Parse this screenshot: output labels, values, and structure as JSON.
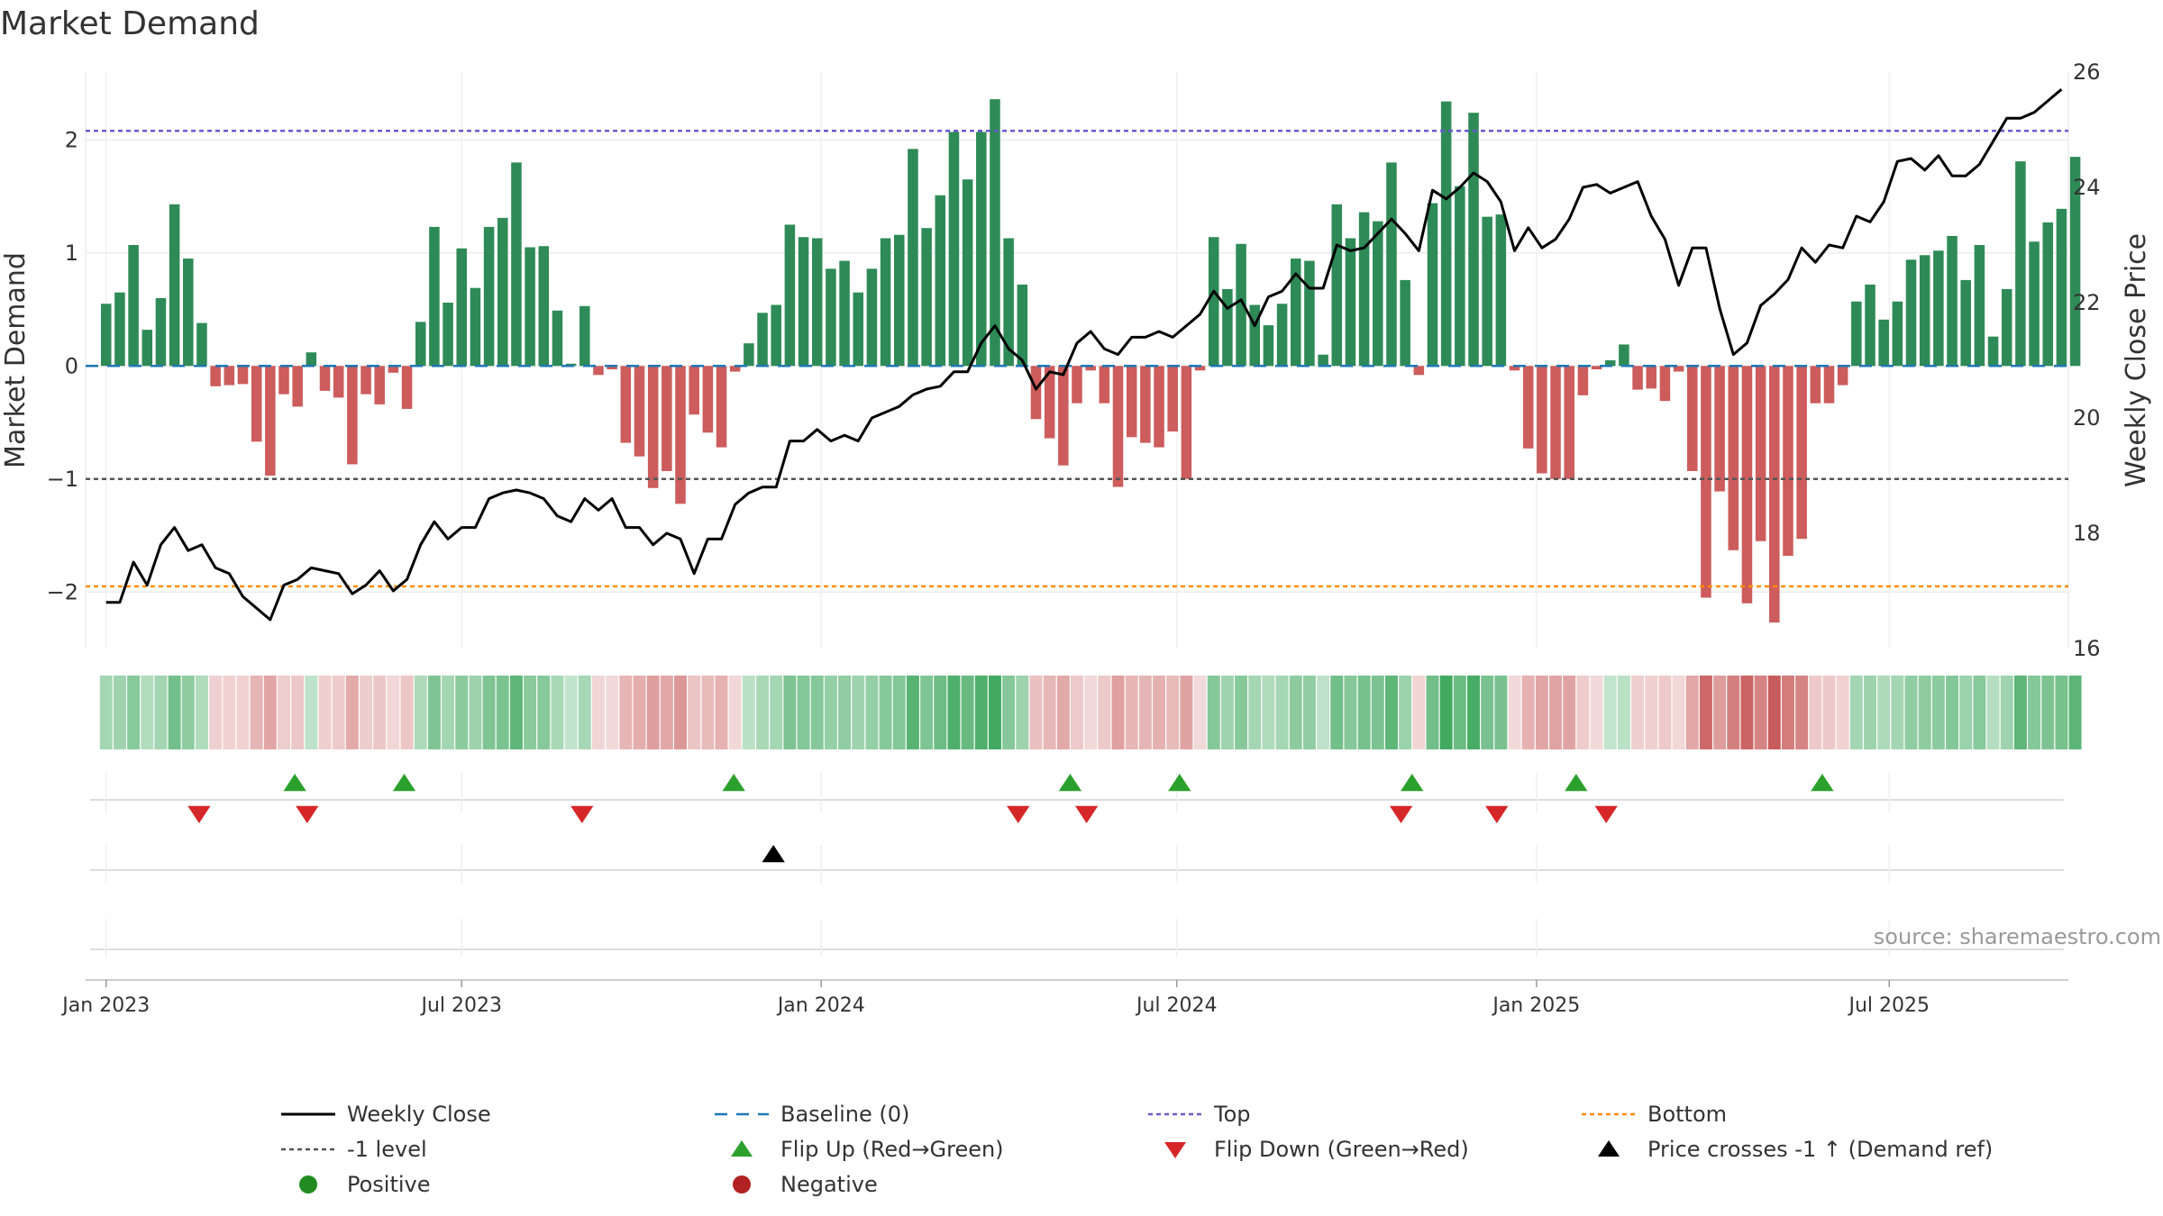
{
  "chart_data": {
    "type": "bar",
    "title": "Market Demand",
    "ylabel_left": "Market Demand",
    "ylabel_right": "Weekly Close Price",
    "ylim_left": [
      -2.5,
      2.6
    ],
    "ylim_right": [
      16,
      26
    ],
    "yticks_left": [
      {
        "value": 2,
        "label": "2"
      },
      {
        "value": 1,
        "label": "1"
      },
      {
        "value": 0,
        "label": "0"
      },
      {
        "value": -1,
        "label": "−1"
      },
      {
        "value": -2,
        "label": "−2"
      }
    ],
    "yticks_right": [
      {
        "value": 26,
        "label": "26"
      },
      {
        "value": 24,
        "label": "24"
      },
      {
        "value": 22,
        "label": "22"
      },
      {
        "value": 20,
        "label": "20"
      },
      {
        "value": 18,
        "label": "18"
      },
      {
        "value": 16,
        "label": "16"
      }
    ],
    "x_range_weeks": [
      -1.5,
      143.5
    ],
    "x_ticks": [
      {
        "week": 0,
        "label": "Jan 2023"
      },
      {
        "week": 26,
        "label": "Jul 2023"
      },
      {
        "week": 52.3,
        "label": "Jan 2024"
      },
      {
        "week": 78.3,
        "label": "Jul 2024"
      },
      {
        "week": 104.6,
        "label": "Jan 2025"
      },
      {
        "week": 130.4,
        "label": "Jul 2025"
      }
    ],
    "reference_lines": {
      "top": 2.08,
      "minus_one_level": -1.0,
      "bottom": -1.95,
      "baseline": 0
    },
    "colors": {
      "positive_bar": "#2e8b57",
      "negative_bar": "#cd5c5c",
      "price_line": "#000000",
      "baseline": "#1f77b4",
      "top": "#6a5acd",
      "minus_one": "#555555",
      "bottom": "#ff8c00",
      "flip_up": "#2ca02c",
      "flip_down": "#d62728",
      "cross": "#000000",
      "positive_dot": "#228b22",
      "negative_dot": "#b22222"
    },
    "demand": [
      0.55,
      0.65,
      1.07,
      0.32,
      0.6,
      1.43,
      0.95,
      0.38,
      -0.18,
      -0.17,
      -0.16,
      -0.67,
      -0.97,
      -0.25,
      -0.36,
      0.12,
      -0.22,
      -0.28,
      -0.87,
      -0.25,
      -0.34,
      -0.06,
      -0.38,
      0.39,
      1.23,
      0.56,
      1.04,
      0.69,
      1.23,
      1.31,
      1.8,
      1.05,
      1.06,
      0.49,
      0.02,
      0.53,
      -0.08,
      -0.03,
      -0.68,
      -0.8,
      -1.08,
      -0.93,
      -1.22,
      -0.43,
      -0.59,
      -0.72,
      -0.05,
      0.2,
      0.47,
      0.54,
      1.25,
      1.14,
      1.13,
      0.86,
      0.93,
      0.65,
      0.86,
      1.13,
      1.16,
      1.92,
      1.22,
      1.51,
      2.07,
      1.65,
      2.07,
      2.36,
      1.13,
      0.72,
      -0.47,
      -0.64,
      -0.88,
      -0.33,
      -0.04,
      -0.33,
      -1.07,
      -0.63,
      -0.68,
      -0.72,
      -0.58,
      -1.0,
      -0.04,
      1.14,
      0.68,
      1.08,
      0.54,
      0.36,
      0.55,
      0.95,
      0.93,
      0.1,
      1.43,
      1.13,
      1.36,
      1.28,
      1.8,
      0.76,
      -0.08,
      1.44,
      2.34,
      1.59,
      2.24,
      1.32,
      1.34,
      -0.04,
      -0.73,
      -0.95,
      -1.0,
      -1.0,
      -0.26,
      -0.03,
      0.05,
      0.19,
      -0.21,
      -0.2,
      -0.31,
      -0.05,
      -0.93,
      -2.05,
      -1.11,
      -1.63,
      -2.1,
      -1.55,
      -2.27,
      -1.68,
      -1.53,
      -0.33,
      -0.33,
      -0.17,
      0.57,
      0.72,
      0.41,
      0.57,
      0.94,
      0.98,
      1.02,
      1.15,
      0.76,
      1.07,
      0.26,
      0.68,
      1.81,
      1.1,
      1.27,
      1.39,
      1.85
    ],
    "price": [
      16.8,
      16.8,
      17.5,
      17.1,
      17.8,
      18.1,
      17.7,
      17.8,
      17.4,
      17.3,
      16.9,
      16.7,
      16.5,
      17.1,
      17.2,
      17.4,
      17.35,
      17.3,
      16.95,
      17.1,
      17.35,
      17.0,
      17.2,
      17.8,
      18.2,
      17.9,
      18.1,
      18.1,
      18.6,
      18.7,
      18.75,
      18.7,
      18.6,
      18.3,
      18.2,
      18.6,
      18.4,
      18.6,
      18.1,
      18.1,
      17.8,
      18.0,
      17.9,
      17.3,
      17.9,
      17.9,
      18.5,
      18.7,
      18.8,
      18.8,
      19.6,
      19.6,
      19.8,
      19.6,
      19.7,
      19.6,
      20.0,
      20.1,
      20.2,
      20.4,
      20.5,
      20.55,
      20.8,
      20.8,
      21.3,
      21.6,
      21.2,
      21.0,
      20.5,
      20.8,
      20.75,
      21.3,
      21.5,
      21.2,
      21.1,
      21.4,
      21.4,
      21.5,
      21.4,
      21.6,
      21.8,
      22.2,
      21.9,
      22.05,
      21.6,
      22.1,
      22.2,
      22.5,
      22.25,
      22.25,
      23.0,
      22.9,
      22.95,
      23.2,
      23.45,
      23.2,
      22.9,
      23.95,
      23.8,
      24.0,
      24.25,
      24.1,
      23.75,
      22.9,
      23.3,
      22.95,
      23.1,
      23.45,
      24.0,
      24.05,
      23.9,
      24.0,
      24.1,
      23.5,
      23.1,
      22.3,
      22.95,
      22.95,
      21.9,
      21.1,
      21.3,
      21.95,
      22.15,
      22.4,
      22.95,
      22.7,
      23.0,
      22.95,
      23.5,
      23.4,
      23.75,
      24.45,
      24.5,
      24.3,
      24.55,
      24.2,
      24.2,
      24.4,
      24.8,
      25.2,
      25.2,
      25.3,
      25.5,
      25.7
    ],
    "flip_up_weeks": [
      13.8,
      21.8,
      45.9,
      70.5,
      78.5,
      95.5,
      107.5,
      125.5
    ],
    "flip_down_weeks": [
      6.8,
      14.7,
      34.8,
      66.7,
      71.7,
      94.7,
      101.7,
      109.7
    ],
    "price_cross_weeks": [
      48.8
    ],
    "source": "source: sharemaestro.com",
    "legend": [
      {
        "label": "Weekly Close",
        "marker": "line",
        "color": "#000000"
      },
      {
        "label": "Baseline (0)",
        "marker": "dash",
        "color": "#1f77b4"
      },
      {
        "label": "Top",
        "marker": "dot",
        "color": "#6a5acd"
      },
      {
        "label": "Bottom",
        "marker": "dot",
        "color": "#ff8c00"
      },
      {
        "label": "-1 level",
        "marker": "dot",
        "color": "#555555"
      },
      {
        "label": "Flip Up (Red→Green)",
        "marker": "tri-up",
        "color": "#2ca02c"
      },
      {
        "label": "Flip Down (Green→Red)",
        "marker": "tri-down",
        "color": "#d62728"
      },
      {
        "label": "Price crosses -1 ↑ (Demand ref)",
        "marker": "tri-up",
        "color": "#000000"
      },
      {
        "label": "Positive",
        "marker": "circle",
        "color": "#228b22"
      },
      {
        "label": "Negative",
        "marker": "circle",
        "color": "#b22222"
      }
    ]
  }
}
